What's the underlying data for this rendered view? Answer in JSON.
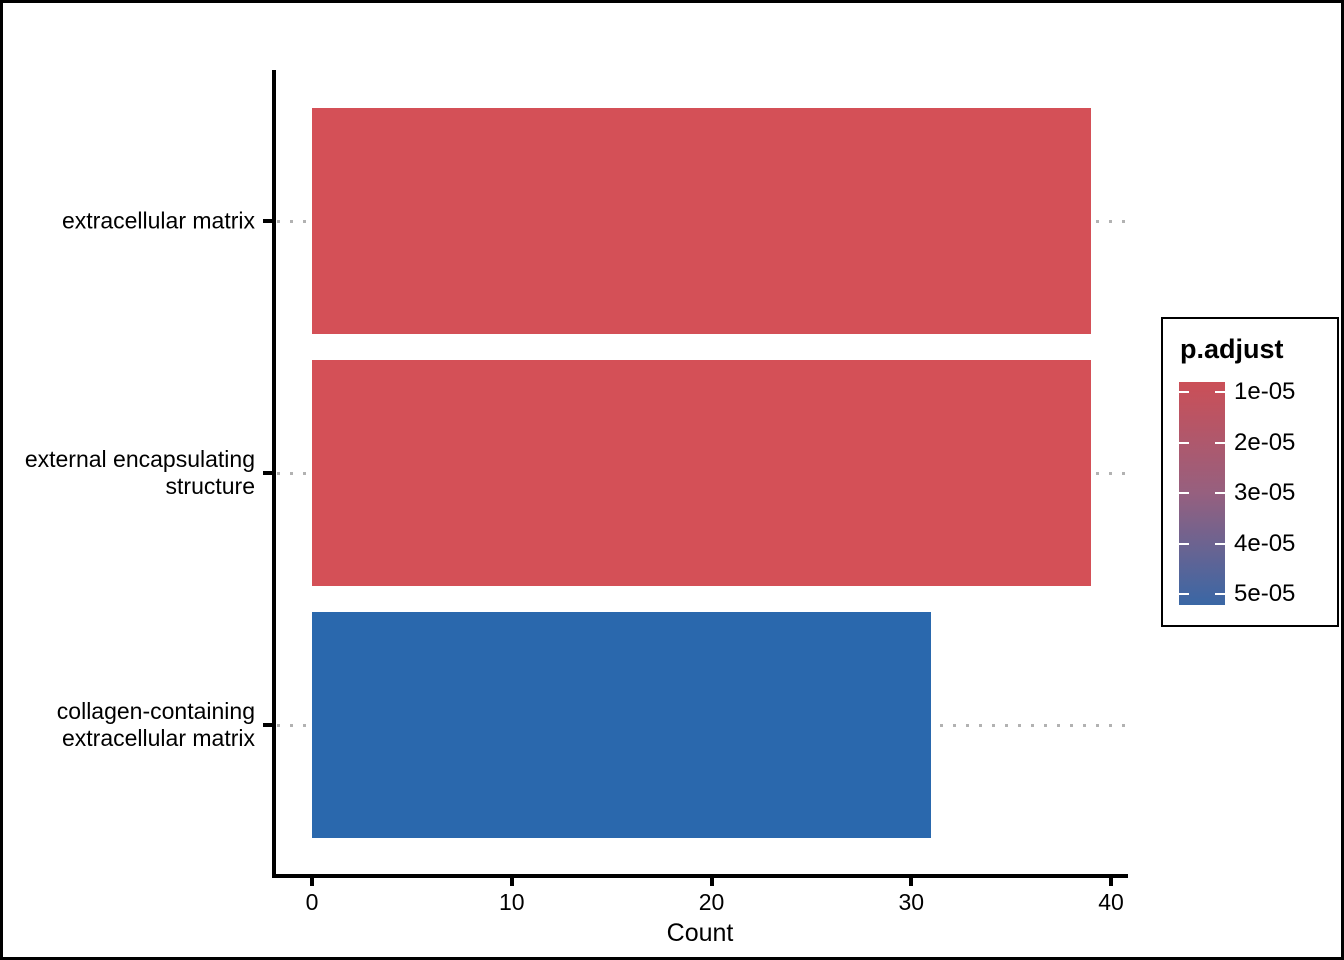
{
  "chart_data": {
    "type": "bar",
    "orientation": "horizontal",
    "title": "",
    "xlabel": "Count",
    "ylabel": "",
    "categories": [
      "extracellular matrix",
      "external encapsulating structure",
      "collagen-containing extracellular matrix"
    ],
    "series": [
      {
        "name": "Count",
        "values": [
          39,
          39,
          31
        ]
      }
    ],
    "p_adjust_estimated_from_color": [
      1e-05,
      1e-05,
      5e-05
    ],
    "bar_colors": [
      "#D45057",
      "#D45057",
      "#2A68AD"
    ],
    "xlim": [
      0,
      40
    ],
    "x_ticks": [
      {
        "label": "0",
        "value": 0
      },
      {
        "label": "10",
        "value": 10
      },
      {
        "label": "20",
        "value": 20
      },
      {
        "label": "30",
        "value": 30
      },
      {
        "label": "40",
        "value": 40
      }
    ],
    "grid": "dotted horizontal line at each category",
    "gridline_color": "#B2B2B2",
    "legend_position": "right"
  },
  "legend": {
    "title": "p.adjust",
    "tick_labels": [
      "1e-05",
      "2e-05",
      "3e-05",
      "4e-05",
      "5e-05"
    ],
    "gradient_top_color": "#CB4F57",
    "gradient_mid_color": "#96607F",
    "gradient_bottom_color": "#3A67A5"
  }
}
